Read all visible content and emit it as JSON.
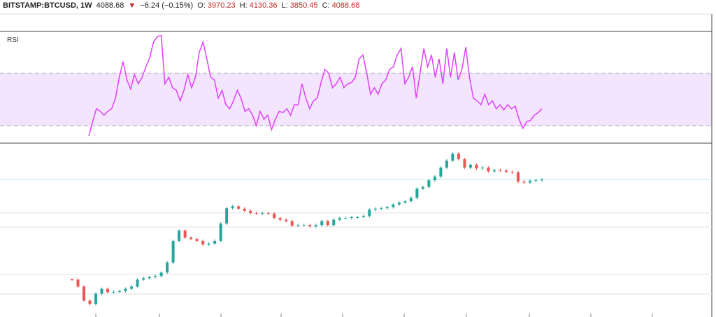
{
  "header": {
    "symbol": "BITSTAMP:BTCUSD, 1W",
    "last": "4088.68",
    "change": "−6.24 (−0.15%)",
    "ohlc": [
      {
        "label": "O:",
        "value": "3970.23"
      },
      {
        "label": "H:",
        "value": "4130.36"
      },
      {
        "label": "L:",
        "value": "3850.45"
      },
      {
        "label": "C:",
        "value": "4088.68"
      }
    ]
  },
  "chart_data": [
    {
      "type": "line",
      "title": "RSI",
      "color": "#e040fb",
      "band_color": "#f3e5fd",
      "ylim": [
        16.7,
        102
      ],
      "levels": [
        30,
        70
      ],
      "values": [
        22,
        33,
        43,
        41,
        38,
        41,
        43,
        51,
        67,
        79,
        65,
        58,
        69,
        62,
        67,
        75,
        82,
        94,
        98,
        99,
        62,
        67,
        59,
        57,
        49,
        57,
        69,
        59,
        67,
        86,
        94,
        81,
        67,
        65,
        51,
        57,
        46,
        43,
        49,
        57,
        51,
        41,
        43,
        38,
        30,
        41,
        35,
        38,
        27,
        35,
        41,
        40,
        43,
        38,
        46,
        46,
        62,
        51,
        43,
        49,
        51,
        63,
        73,
        70,
        59,
        62,
        67,
        59,
        62,
        63,
        67,
        81,
        84,
        70,
        54,
        59,
        54,
        62,
        65,
        73,
        75,
        84,
        89,
        62,
        67,
        75,
        51,
        70,
        89,
        75,
        84,
        67,
        81,
        62,
        89,
        67,
        86,
        65,
        73,
        90,
        67,
        51,
        49,
        46,
        54,
        46,
        49,
        43,
        46,
        42,
        46,
        43,
        45,
        35,
        28,
        33,
        34,
        38,
        40,
        43
      ]
    },
    {
      "type": "candlestick",
      "log_scale": true,
      "ylim": [
        1,
        36900
      ],
      "up_color": "#26a69a",
      "down_color": "#ef5350",
      "last_line_color": "#b2ebf2",
      "values": [
        9.6,
        6.3,
        2.7,
        2.2,
        4.1,
        5.5,
        4.5,
        4.6,
        4.8,
        5.5,
        6.3,
        9.6,
        10.5,
        11.2,
        11.9,
        14.7,
        27,
        100,
        186,
        122,
        112,
        100,
        80,
        85,
        100,
        285,
        720,
        810,
        700,
        620,
        540,
        520,
        540,
        520,
        400,
        360,
        330,
        250,
        260,
        260,
        240,
        260,
        330,
        260,
        360,
        400,
        400,
        420,
        420,
        450,
        660,
        700,
        720,
        770,
        900,
        1010,
        1100,
        1350,
        2350,
        2600,
        3900,
        4900,
        8400,
        12800,
        19600,
        14000,
        8400,
        10000,
        8000,
        8400,
        6700,
        7200,
        7000,
        6500,
        6300,
        3600,
        3400,
        3800,
        3900,
        4088.68
      ]
    }
  ]
}
